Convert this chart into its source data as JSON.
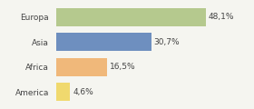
{
  "categories": [
    "Europa",
    "Asia",
    "Africa",
    "America"
  ],
  "values": [
    48.1,
    30.7,
    16.5,
    4.6
  ],
  "labels": [
    "48,1%",
    "30,7%",
    "16,5%",
    "4,6%"
  ],
  "bar_colors": [
    "#b5c98e",
    "#6e8fbf",
    "#f0b87a",
    "#f0d96e"
  ],
  "background_color": "#f5f5f0",
  "xlim": [
    0,
    62
  ],
  "bar_height": 0.72,
  "label_fontsize": 6.5,
  "tick_fontsize": 6.5
}
